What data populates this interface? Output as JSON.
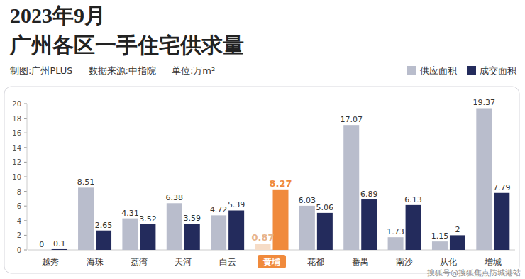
{
  "chart_data": {
    "type": "bar",
    "title": "2023年9月",
    "subtitle": "广州各区一手住宅供求量",
    "annotations": [
      "制图:广州PLUS",
      "数据来源:中指院",
      "单位:万m²",
      "搜狐号@搜狐焦点防城港站"
    ],
    "categories": [
      "越秀",
      "海珠",
      "荔湾",
      "天河",
      "白云",
      "黄埔",
      "花都",
      "番禺",
      "南沙",
      "从化",
      "增城"
    ],
    "series": [
      {
        "name": "供应面积",
        "color": "#b9bdcc",
        "colors": [
          "#b9bdcc",
          "#b9bdcc",
          "#b9bdcc",
          "#b9bdcc",
          "#b9bdcc",
          "#f6dcc6",
          "#b9bdcc",
          "#b9bdcc",
          "#b9bdcc",
          "#b9bdcc",
          "#b9bdcc"
        ],
        "values": [
          0,
          8.51,
          4.31,
          6.38,
          4.72,
          0.87,
          6.03,
          17.07,
          1.73,
          1.15,
          19.37
        ]
      },
      {
        "name": "成交面积",
        "color": "#232b5c",
        "colors": [
          "#232b5c",
          "#232b5c",
          "#232b5c",
          "#232b5c",
          "#232b5c",
          "#f08a3c",
          "#232b5c",
          "#232b5c",
          "#232b5c",
          "#232b5c",
          "#232b5c"
        ],
        "values": [
          0.1,
          2.65,
          3.52,
          3.59,
          5.39,
          8.27,
          5.06,
          6.89,
          6.13,
          2,
          7.79
        ]
      }
    ],
    "ylim": [
      0,
      20
    ],
    "yticks": [
      0,
      2,
      4,
      6,
      8,
      10,
      12,
      14,
      16,
      18,
      20
    ],
    "grid": false,
    "legend": "top-right",
    "data_labels": true
  }
}
